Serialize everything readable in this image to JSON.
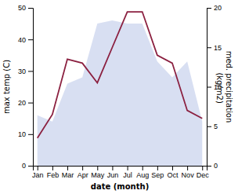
{
  "chart_data": {
    "type": "combo",
    "categories": [
      "Jan",
      "Feb",
      "Mar",
      "Apr",
      "May",
      "Jun",
      "Jul",
      "Aug",
      "Sep",
      "Oct",
      "Nov",
      "Dec"
    ],
    "series": [
      {
        "type": "area",
        "color": "#b8c4e8",
        "values": [
          16,
          14,
          26,
          28,
          45,
          46,
          45,
          45,
          33,
          28,
          33,
          14
        ]
      },
      {
        "type": "line",
        "color": "#8b2040",
        "axis": "y2",
        "values": [
          3.5,
          6.5,
          13.5,
          13.0,
          10.5,
          15.0,
          19.5,
          19.5,
          14.0,
          13.0,
          7.0,
          6.0
        ]
      }
    ],
    "xlabel": "date (month)",
    "ylabel": "max temp (C)",
    "y2label": "med. precipitation\n (kg/m2)",
    "ylim": [
      0,
      50
    ],
    "yticks": [
      0,
      10,
      20,
      30,
      40,
      50
    ],
    "y2lim": [
      0,
      20
    ],
    "y2ticks": [
      0,
      5,
      10,
      15,
      20
    ],
    "grid": false
  }
}
